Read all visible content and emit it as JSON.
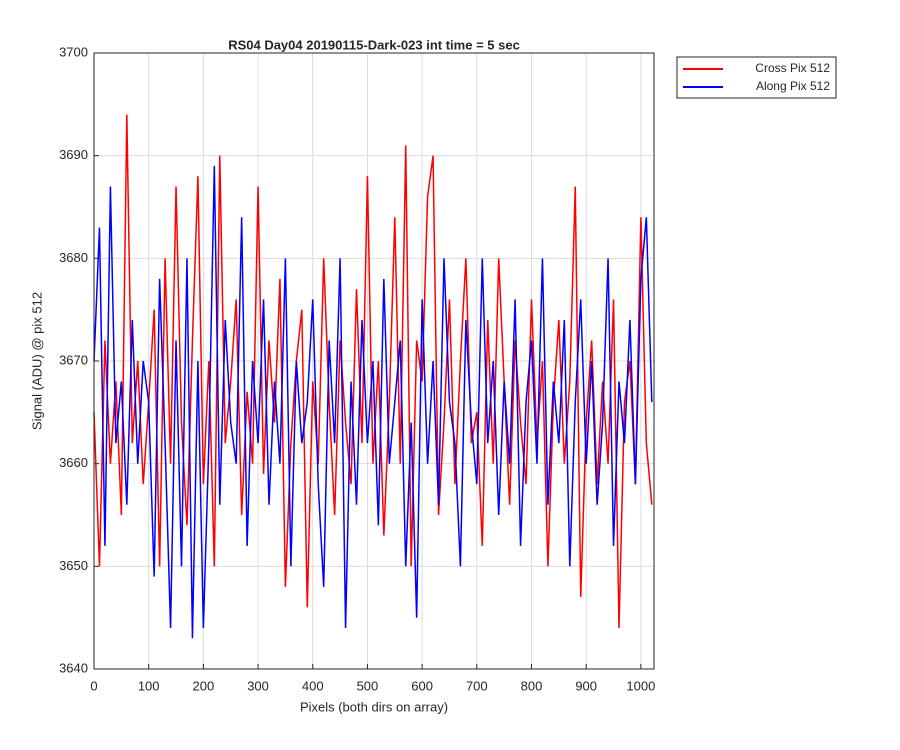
{
  "chart_data": {
    "type": "line",
    "title": "RS04 Day04 20190115-Dark-023 int time = 5 sec",
    "xlabel": "Pixels (both dirs on array)",
    "ylabel": "Signal (ADU) @ pix 512",
    "x": [
      0,
      10,
      20,
      30,
      40,
      50,
      60,
      70,
      80,
      90,
      100,
      110,
      120,
      130,
      140,
      150,
      160,
      170,
      180,
      190,
      200,
      210,
      220,
      230,
      240,
      250,
      260,
      270,
      280,
      290,
      300,
      310,
      320,
      330,
      340,
      350,
      360,
      370,
      380,
      390,
      400,
      410,
      420,
      430,
      440,
      450,
      460,
      470,
      480,
      490,
      500,
      510,
      520,
      530,
      540,
      550,
      560,
      570,
      580,
      590,
      600,
      610,
      620,
      630,
      640,
      650,
      660,
      670,
      680,
      690,
      700,
      710,
      720,
      730,
      740,
      750,
      760,
      770,
      780,
      790,
      800,
      810,
      820,
      830,
      840,
      850,
      860,
      870,
      880,
      890,
      900,
      910,
      920,
      930,
      940,
      950,
      960,
      970,
      980,
      990,
      1000,
      1010,
      1020
    ],
    "series": [
      {
        "name": "Cross Pix 512",
        "color": "#ff0000",
        "values": [
          3665,
          3650,
          3672,
          3660,
          3668,
          3655,
          3694,
          3662,
          3670,
          3658,
          3666,
          3675,
          3650,
          3680,
          3660,
          3687,
          3664,
          3654,
          3672,
          3688,
          3658,
          3670,
          3650,
          3690,
          3662,
          3668,
          3676,
          3655,
          3667,
          3660,
          3687,
          3659,
          3672,
          3664,
          3678,
          3648,
          3662,
          3670,
          3675,
          3646,
          3668,
          3660,
          3680,
          3666,
          3655,
          3672,
          3664,
          3658,
          3677,
          3662,
          3688,
          3660,
          3670,
          3653,
          3666,
          3684,
          3660,
          3691,
          3650,
          3672,
          3668,
          3686,
          3690,
          3655,
          3664,
          3676,
          3658,
          3670,
          3680,
          3662,
          3665,
          3652,
          3674,
          3660,
          3680,
          3668,
          3656,
          3672,
          3664,
          3658,
          3676,
          3662,
          3670,
          3650,
          3666,
          3674,
          3660,
          3668,
          3687,
          3647,
          3664,
          3672,
          3658,
          3668,
          3660,
          3676,
          3644,
          3666,
          3670,
          3658,
          3684,
          3662,
          3656
        ]
      },
      {
        "name": "Along Pix 512",
        "color": "#0000ff",
        "values": [
          3670,
          3683,
          3652,
          3687,
          3662,
          3668,
          3656,
          3674,
          3660,
          3670,
          3666,
          3649,
          3678,
          3662,
          3644,
          3672,
          3650,
          3680,
          3643,
          3670,
          3644,
          3662,
          3689,
          3656,
          3674,
          3664,
          3660,
          3684,
          3652,
          3670,
          3662,
          3676,
          3656,
          3668,
          3660,
          3680,
          3650,
          3670,
          3662,
          3666,
          3676,
          3658,
          3648,
          3672,
          3662,
          3680,
          3644,
          3668,
          3656,
          3674,
          3662,
          3670,
          3654,
          3678,
          3660,
          3666,
          3672,
          3650,
          3664,
          3645,
          3676,
          3660,
          3670,
          3656,
          3680,
          3666,
          3662,
          3650,
          3674,
          3664,
          3658,
          3680,
          3662,
          3670,
          3655,
          3668,
          3660,
          3676,
          3652,
          3666,
          3672,
          3660,
          3680,
          3656,
          3668,
          3662,
          3674,
          3650,
          3666,
          3676,
          3660,
          3670,
          3656,
          3664,
          3680,
          3652,
          3668,
          3662,
          3674,
          3658,
          3678,
          3684,
          3666
        ]
      }
    ],
    "xlim": [
      0,
      1024
    ],
    "xticks": [
      0,
      100,
      200,
      300,
      400,
      500,
      600,
      700,
      800,
      900,
      1000
    ],
    "ylim": [
      3640,
      3700
    ],
    "yticks": [
      3640,
      3650,
      3660,
      3670,
      3680,
      3690,
      3700
    ],
    "grid": true,
    "legend": "outside-right"
  }
}
